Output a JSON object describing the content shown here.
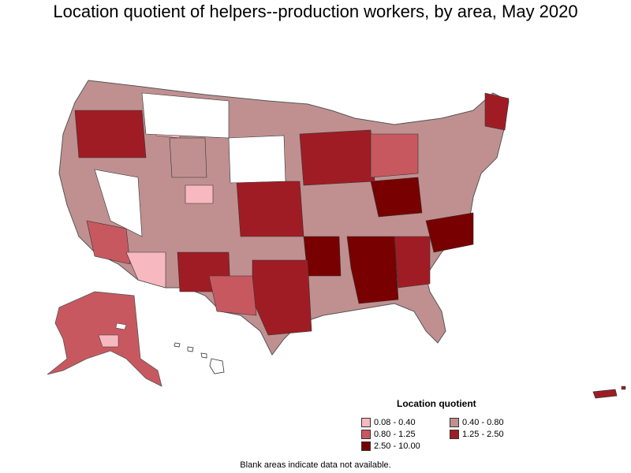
{
  "title": "Location quotient of helpers--production workers, by area, May 2020",
  "legend": {
    "title": "Location quotient",
    "items": [
      {
        "label": "0.08 - 0.40",
        "color": "#f8b8c0"
      },
      {
        "label": "0.40 - 0.80",
        "color": "#c09090"
      },
      {
        "label": "0.80 - 1.25",
        "color": "#c85860"
      },
      {
        "label": "1.25 - 2.50",
        "color": "#a01c24"
      },
      {
        "label": "2.50 - 10.00",
        "color": "#780000"
      }
    ]
  },
  "footnote": "Blank areas indicate data not available."
}
